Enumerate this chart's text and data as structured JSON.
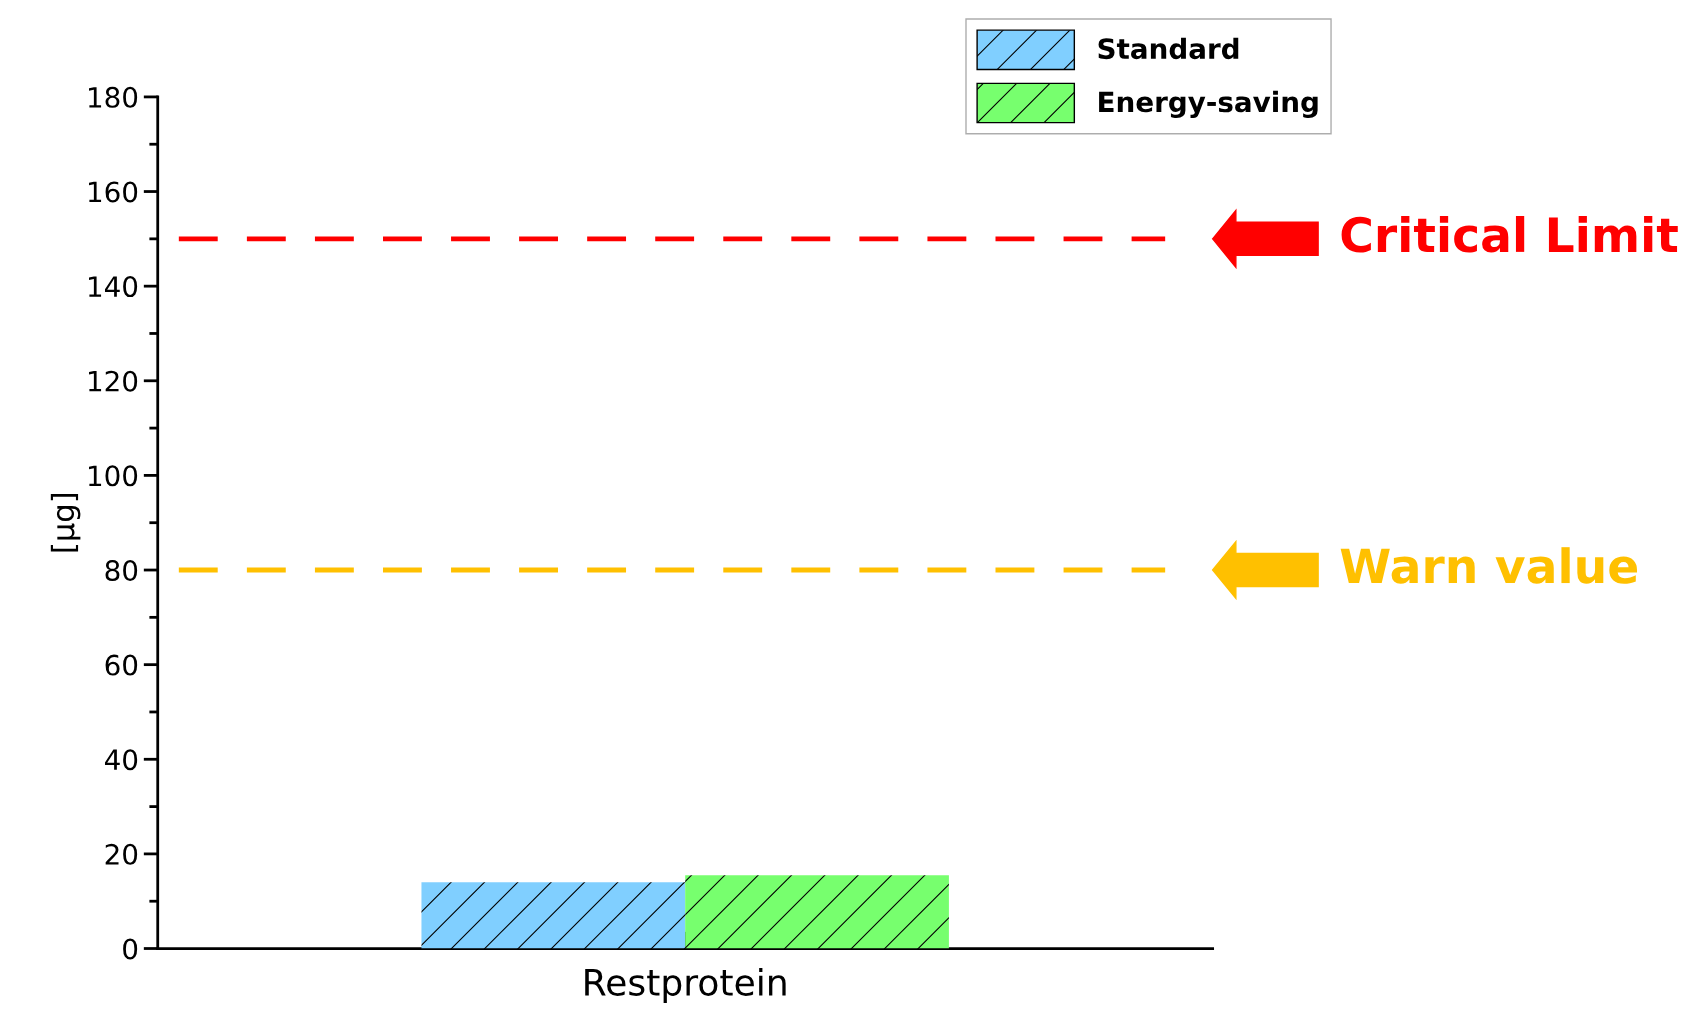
{
  "chart_data": {
    "type": "bar",
    "ylabel": "[µg]",
    "categories": [
      "Restprotein"
    ],
    "series": [
      {
        "name": "Standard",
        "color": "#80cfff",
        "values": [
          14
        ]
      },
      {
        "name": "Energy-saving",
        "color": "#77ff6e",
        "values": [
          15.5
        ]
      }
    ],
    "ylim": [
      0,
      180
    ],
    "yticks": [
      0,
      20,
      40,
      60,
      80,
      100,
      120,
      140,
      160,
      180
    ],
    "ref_lines": [
      {
        "axis": "y",
        "value": 150,
        "label": "Critical Limit",
        "color": "#ff0000",
        "line_style": "dashed"
      },
      {
        "axis": "y",
        "value": 80,
        "label": "Warn value",
        "color": "#ffc000",
        "line_style": "dashed"
      }
    ],
    "legend": "top right",
    "grid": false
  }
}
